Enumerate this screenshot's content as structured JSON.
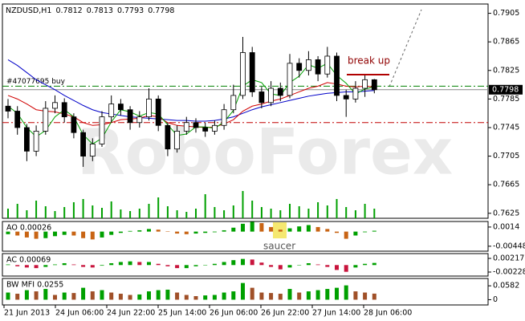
{
  "chart_data": [
    {
      "type": "candlestick",
      "title": "NZDUSD,H1",
      "open": [
        0.7775,
        0.7768,
        0.7745,
        0.7712,
        0.774,
        0.7772,
        0.778,
        0.776,
        0.7738,
        0.7705,
        0.7722,
        0.776,
        0.7778,
        0.777,
        0.7752,
        0.776,
        0.7785,
        0.7748,
        0.7715,
        0.774,
        0.7752,
        0.7745,
        0.774,
        0.7748,
        0.777,
        0.779,
        0.785,
        0.7795,
        0.778,
        0.78,
        0.779,
        0.7835,
        0.7825,
        0.784,
        0.782,
        0.7845,
        0.779,
        0.7785,
        0.78,
        0.7812
      ],
      "high": [
        0.7785,
        0.7775,
        0.775,
        0.7748,
        0.7782,
        0.779,
        0.7786,
        0.7765,
        0.7742,
        0.773,
        0.7768,
        0.779,
        0.7785,
        0.7775,
        0.7768,
        0.78,
        0.779,
        0.7752,
        0.7748,
        0.776,
        0.7758,
        0.7752,
        0.7755,
        0.7778,
        0.7805,
        0.7872,
        0.7858,
        0.7802,
        0.781,
        0.7808,
        0.7848,
        0.7842,
        0.7852,
        0.7845,
        0.7858,
        0.785,
        0.7798,
        0.781,
        0.7818,
        0.7813
      ],
      "low": [
        0.7758,
        0.7735,
        0.7698,
        0.7705,
        0.7735,
        0.7765,
        0.7752,
        0.773,
        0.769,
        0.7698,
        0.7718,
        0.7752,
        0.7762,
        0.7742,
        0.7745,
        0.7755,
        0.774,
        0.7705,
        0.771,
        0.7735,
        0.7738,
        0.7732,
        0.7735,
        0.7742,
        0.7765,
        0.7785,
        0.7788,
        0.7772,
        0.7775,
        0.7782,
        0.7786,
        0.7815,
        0.7818,
        0.781,
        0.7815,
        0.7782,
        0.776,
        0.778,
        0.7788,
        0.7793
      ],
      "close": [
        0.7768,
        0.7745,
        0.7712,
        0.774,
        0.7772,
        0.778,
        0.776,
        0.7738,
        0.7705,
        0.7722,
        0.776,
        0.7778,
        0.777,
        0.7752,
        0.776,
        0.7785,
        0.7748,
        0.7715,
        0.774,
        0.7752,
        0.7745,
        0.774,
        0.7748,
        0.777,
        0.779,
        0.785,
        0.7795,
        0.778,
        0.78,
        0.779,
        0.7835,
        0.7825,
        0.784,
        0.782,
        0.7845,
        0.779,
        0.7785,
        0.78,
        0.7812,
        0.7798
      ],
      "lines": [
        {
          "color": "#0000c8",
          "values": [
            0.784,
            0.7832,
            0.7822,
            0.7812,
            0.7805,
            0.7798,
            0.779,
            0.7783,
            0.7776,
            0.777,
            0.7766,
            0.7764,
            0.7762,
            0.776,
            0.7759,
            0.7758,
            0.7757,
            0.7756,
            0.7755,
            0.7755,
            0.7754,
            0.7754,
            0.7755,
            0.7757,
            0.776,
            0.7765,
            0.777,
            0.7774,
            0.7777,
            0.778,
            0.7783,
            0.7786,
            0.7789,
            0.7791,
            0.7793,
            0.7794,
            0.7795,
            0.7795,
            0.7796,
            0.7797
          ]
        },
        {
          "color": "#d00000",
          "values": [
            0.779,
            0.7785,
            0.7778,
            0.777,
            0.7768,
            0.7767,
            0.7764,
            0.776,
            0.7752,
            0.7748,
            0.7749,
            0.7752,
            0.7756,
            0.7757,
            0.7758,
            0.7762,
            0.776,
            0.7752,
            0.7748,
            0.7747,
            0.7746,
            0.7745,
            0.7746,
            0.775,
            0.7756,
            0.7768,
            0.7775,
            0.7778,
            0.7782,
            0.7785,
            0.779,
            0.7795,
            0.78,
            0.7803,
            0.7808,
            0.7806,
            0.7803,
            0.7802,
            0.7803,
            0.7802
          ]
        },
        {
          "color": "#00a000",
          "values": [
            0.7775,
            0.7765,
            0.7745,
            0.7732,
            0.7741,
            0.776,
            0.777,
            0.776,
            0.7735,
            0.7722,
            0.773,
            0.7753,
            0.777,
            0.7767,
            0.7761,
            0.7766,
            0.7764,
            0.7749,
            0.7734,
            0.7736,
            0.7746,
            0.7746,
            0.7744,
            0.7753,
            0.7769,
            0.7803,
            0.7812,
            0.7808,
            0.7792,
            0.779,
            0.7808,
            0.7817,
            0.7833,
            0.7828,
            0.7835,
            0.7818,
            0.7807,
            0.7792,
            0.7799,
            0.7802
          ]
        }
      ],
      "volumes": [
        12,
        18,
        10,
        22,
        15,
        9,
        14,
        20,
        24,
        16,
        13,
        21,
        11,
        9,
        12,
        18,
        26,
        15,
        10,
        8,
        12,
        30,
        14,
        10,
        16,
        34,
        22,
        14,
        12,
        10,
        18,
        15,
        12,
        20,
        16,
        24,
        14,
        10,
        18,
        12
      ],
      "volume_color": "#00a000",
      "ylim": [
        0.7618,
        0.7918
      ],
      "yticks": [
        0.7905,
        0.7865,
        0.7825,
        0.7785,
        0.7745,
        0.7705,
        0.7665,
        0.7625
      ],
      "levels": [
        {
          "value": 0.7803,
          "color": "#008000",
          "label": "#47077695 buy"
        },
        {
          "value": 0.7752,
          "color": "#c00000"
        }
      ],
      "annotations": [
        "break up",
        "saucer"
      ],
      "watermark": "RoboForex",
      "x_labels": [
        "21 Jun 2013",
        "24 Jun 06:00",
        "24 Jun 22:00",
        "25 Jun 14:00",
        "26 Jun 06:00",
        "26 Jun 22:00",
        "27 Jun 14:00",
        "28 Jun 06:00"
      ]
    },
    {
      "type": "histogram",
      "title": "AO 0.00026",
      "values": [
        -0.0008,
        -0.0012,
        -0.0018,
        -0.0022,
        -0.002,
        -0.0014,
        -0.001,
        -0.0012,
        -0.002,
        -0.0024,
        -0.0018,
        -0.001,
        -0.0004,
        0.0002,
        0.0004,
        0.0008,
        0.0006,
        0.0001,
        -0.0006,
        -0.0008,
        -0.0006,
        -0.0004,
        -0.0002,
        0.0004,
        0.0012,
        0.0024,
        0.003,
        0.0026,
        0.0014,
        0.0006,
        0.001,
        0.0016,
        0.002,
        0.0014,
        0.0008,
        -0.0004,
        -0.0022,
        -0.0012,
        -0.0002,
        0.00026
      ],
      "up_color": "#00a000",
      "down_color": "#c86414",
      "ylim": [
        -0.006,
        0.0031
      ],
      "yticks": [
        0.0014,
        -0.00448
      ]
    },
    {
      "type": "histogram",
      "title": "AC 0.00069",
      "values": [
        0.0002,
        -0.0004,
        -0.0008,
        -0.001,
        -0.0006,
        0.0002,
        0.0006,
        0.0002,
        -0.0006,
        -0.0008,
        -0.0002,
        0.0006,
        0.001,
        0.0012,
        0.001,
        0.001,
        0.0004,
        -0.0004,
        -0.001,
        -0.001,
        -0.0004,
        0.0,
        0.0004,
        0.001,
        0.0016,
        0.002,
        0.0018,
        0.0008,
        -0.0006,
        -0.0014,
        -0.0008,
        0.0,
        0.0006,
        0.0002,
        -0.0006,
        -0.0016,
        -0.0022,
        -0.0008,
        0.0004,
        0.00069
      ],
      "up_color": "#00a000",
      "down_color": "#c8143c",
      "ylim": [
        -0.00359,
        0.00374
      ],
      "yticks": [
        0.00217,
        -0.00228
      ]
    },
    {
      "type": "histogram",
      "title": "BW MFI 0.0255",
      "values": [
        0.03,
        0.025,
        0.04,
        0.035,
        0.045,
        0.02,
        0.03,
        0.028,
        0.05,
        0.035,
        0.04,
        0.03,
        0.025,
        0.02,
        0.022,
        0.035,
        0.04,
        0.042,
        0.03,
        0.02,
        0.015,
        0.018,
        0.02,
        0.03,
        0.035,
        0.07,
        0.05,
        0.03,
        0.028,
        0.025,
        0.045,
        0.03,
        0.035,
        0.04,
        0.045,
        0.05,
        0.06,
        0.035,
        0.03,
        0.0255
      ],
      "up_color": "#00a000",
      "down_color": "#a05028",
      "ylim": [
        -0.022,
        0.089
      ],
      "yticks": [
        0.0582,
        0
      ]
    }
  ]
}
